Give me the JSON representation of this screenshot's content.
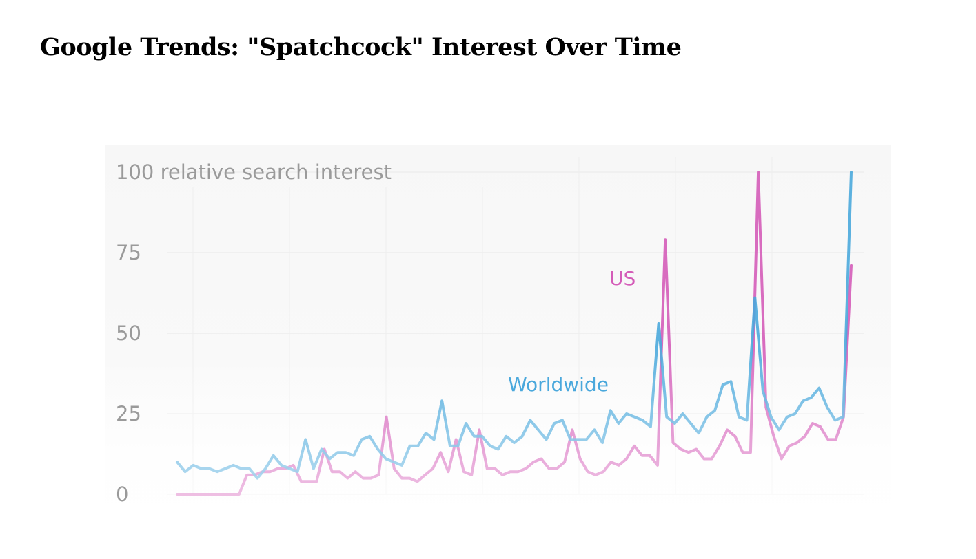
{
  "page": {
    "title": "Google Trends: \"Spatchcock\" Interest Over Time"
  },
  "chart_data": {
    "type": "line",
    "title": "Google Trends: \"Spatchcock\" Interest Over Time",
    "ylabel": "relative search interest",
    "xlabel": "",
    "ylim": [
      0,
      100
    ],
    "yticks": [
      0,
      25,
      50,
      75,
      100
    ],
    "top_tick_label": "100 relative search interest",
    "grid": true,
    "colors": {
      "us": "#d45cb8",
      "worldwide": "#4aa8dc",
      "grid": "#e8e8e8",
      "background": "#f8f8f8"
    },
    "series": [
      {
        "name": "US",
        "values": [
          0,
          0,
          0,
          0,
          0,
          0,
          0,
          0,
          0,
          6,
          6,
          7,
          7,
          8,
          8,
          9,
          4,
          4,
          4,
          14,
          7,
          7,
          5,
          7,
          5,
          5,
          6,
          24,
          8,
          5,
          5,
          4,
          6,
          8,
          13,
          7,
          17,
          7,
          6,
          20,
          8,
          8,
          6,
          7,
          7,
          8,
          10,
          11,
          8,
          8,
          10,
          20,
          11,
          7,
          6,
          7,
          10,
          9,
          11,
          15,
          12,
          12,
          9,
          79,
          16,
          14,
          13,
          14,
          11,
          11,
          15,
          20,
          18,
          13,
          13,
          100,
          27,
          18,
          11,
          15,
          16,
          18,
          22,
          21,
          17,
          17,
          24,
          71
        ]
      },
      {
        "name": "Worldwide",
        "values": [
          10,
          7,
          9,
          8,
          8,
          7,
          8,
          9,
          8,
          8,
          5,
          8,
          12,
          9,
          8,
          7,
          17,
          8,
          14,
          11,
          13,
          13,
          12,
          17,
          18,
          14,
          11,
          10,
          9,
          15,
          15,
          19,
          17,
          29,
          15,
          15,
          22,
          18,
          18,
          15,
          14,
          18,
          16,
          18,
          23,
          20,
          17,
          22,
          23,
          17,
          17,
          17,
          20,
          16,
          26,
          22,
          25,
          24,
          23,
          21,
          53,
          24,
          22,
          25,
          22,
          19,
          24,
          26,
          34,
          35,
          24,
          23,
          61,
          32,
          24,
          20,
          24,
          25,
          29,
          30,
          33,
          27,
          23,
          24,
          100
        ]
      }
    ],
    "labels": {
      "us": "US",
      "worldwide": "Worldwide"
    }
  }
}
